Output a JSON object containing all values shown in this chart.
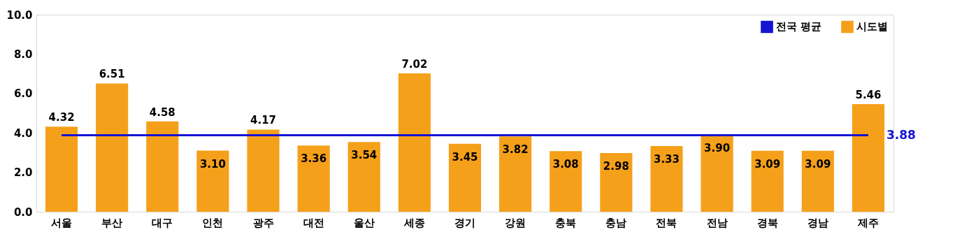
{
  "chart_data": {
    "type": "bar",
    "categories": [
      "서울",
      "부산",
      "대구",
      "인천",
      "광주",
      "대전",
      "울산",
      "세종",
      "경기",
      "강원",
      "충북",
      "충남",
      "전북",
      "전남",
      "경북",
      "경남",
      "제주"
    ],
    "series": [
      {
        "name": "전국 평균",
        "type": "line",
        "color": "#1414d2",
        "marker": "none",
        "values": [
          3.88,
          3.88,
          3.88,
          3.88,
          3.88,
          3.88,
          3.88,
          3.88,
          3.88,
          3.88,
          3.88,
          3.88,
          3.88,
          3.88,
          3.88,
          3.88,
          3.88
        ],
        "value_labels": [
          null,
          null,
          null,
          null,
          null,
          null,
          null,
          null,
          null,
          null,
          null,
          null,
          null,
          null,
          null,
          null,
          "3.88"
        ]
      },
      {
        "name": "시도별",
        "color": "#f5a01a",
        "values": [
          4.32,
          6.51,
          4.58,
          3.1,
          4.17,
          3.36,
          3.54,
          7.02,
          3.45,
          3.82,
          3.08,
          2.98,
          3.33,
          3.9,
          3.09,
          3.09,
          5.46
        ],
        "value_labels": [
          "4.32",
          "6.51",
          "4.58",
          "3.10",
          "4.17",
          "3.36",
          "3.54",
          "7.02",
          "3.45",
          "3.82",
          "3.08",
          "2.98",
          "3.33",
          "3.90",
          "3.09",
          "3.09",
          "5.46"
        ]
      }
    ],
    "ylim": [
      0,
      10
    ],
    "yticks": [
      {
        "value": 0,
        "label": "0.0"
      },
      {
        "value": 2,
        "label": "2.0"
      },
      {
        "value": 4,
        "label": "4.0"
      },
      {
        "value": 6,
        "label": "6.0"
      },
      {
        "value": 8,
        "label": "8.0"
      },
      {
        "value": 10,
        "label": "10.0"
      }
    ],
    "grid": false,
    "legend": "top right"
  }
}
